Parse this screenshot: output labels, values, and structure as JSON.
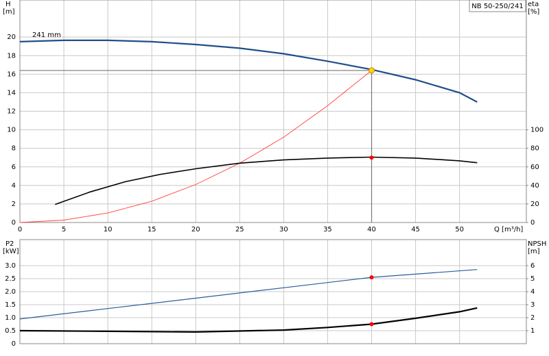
{
  "chart_data": [
    {
      "type": "line",
      "title": "NB 50-250/241",
      "x_label": "Q [m³/h]",
      "y_label": "H",
      "y_unit": "[m]",
      "y2_label": "eta",
      "y2_unit": "[%]",
      "xlim": [
        0,
        57.6
      ],
      "xticks": [
        0,
        5,
        10,
        15,
        20,
        25,
        30,
        35,
        40,
        45,
        50
      ],
      "ylim": [
        0,
        24
      ],
      "yticks": [
        0,
        2,
        4,
        6,
        8,
        10,
        12,
        14,
        16,
        18,
        20
      ],
      "y2lim": [
        0,
        240
      ],
      "y2ticks": [
        0,
        20,
        40,
        60,
        80,
        100
      ],
      "grid": true,
      "series": [
        {
          "name": "241 mm",
          "color": "#1f4e8c",
          "line_width": 2.2,
          "x": [
            0,
            5,
            10,
            15,
            20,
            25,
            30,
            35,
            40,
            45,
            50,
            52
          ],
          "values": [
            19.5,
            19.65,
            19.65,
            19.5,
            19.2,
            18.8,
            18.2,
            17.4,
            16.5,
            15.4,
            14.0,
            13.0
          ]
        },
        {
          "color": "#ff4040",
          "line_width": 0.9,
          "x": [
            0,
            5,
            10,
            15,
            20,
            25,
            30,
            35,
            40
          ],
          "values": [
            0,
            0.26,
            1.03,
            2.3,
            4.1,
            6.4,
            9.2,
            12.6,
            16.4
          ]
        },
        {
          "color": "#000000",
          "line_width": 1.6,
          "axis": "y2",
          "x": [
            4,
            8,
            12,
            16,
            20,
            25,
            30,
            35,
            40,
            45,
            50,
            52
          ],
          "values": [
            19.5,
            33,
            44,
            52,
            58,
            64,
            67.5,
            69.5,
            70.5,
            69.5,
            66.5,
            64.5
          ]
        }
      ],
      "points": [
        {
          "x": 40,
          "y": 16.4,
          "color": "#ffd700",
          "guides": true
        },
        {
          "x": 40,
          "y": 70,
          "axis": "y2",
          "color": "#ff0000"
        }
      ]
    },
    {
      "type": "line",
      "y_label": "P2",
      "y_unit": "[kW]",
      "y2_label": "NPSH",
      "y2_unit": "[m]",
      "xlim": [
        0,
        57.6
      ],
      "ylim": [
        0,
        4
      ],
      "yticks": [
        0,
        0.5,
        {
          "value": 1,
          "label": "1.0"
        },
        1.5,
        {
          "value": 2,
          "label": "2.0"
        },
        2.5,
        {
          "value": 3,
          "label": "3.0"
        }
      ],
      "y2lim": [
        0,
        8
      ],
      "y2ticks": [
        1,
        2,
        3,
        4,
        5,
        6
      ],
      "grid": true,
      "series": [
        {
          "color": "#2a5a9a",
          "line_width": 1.2,
          "x": [
            0,
            10,
            20,
            30,
            40,
            52
          ],
          "values": [
            0.95,
            1.35,
            1.75,
            2.15,
            2.55,
            2.85
          ]
        },
        {
          "color": "#000000",
          "line_width": 2.2,
          "axis": "y2",
          "x": [
            0,
            10,
            20,
            30,
            35,
            40,
            45,
            50,
            52
          ],
          "values": [
            1.0,
            0.95,
            0.9,
            1.05,
            1.25,
            1.5,
            1.95,
            2.45,
            2.75
          ]
        }
      ],
      "points": [
        {
          "x": 40,
          "y": 2.55,
          "color": "#ff0000"
        },
        {
          "x": 40,
          "y": 1.5,
          "axis": "y2",
          "color": "#ff0000"
        }
      ]
    }
  ]
}
